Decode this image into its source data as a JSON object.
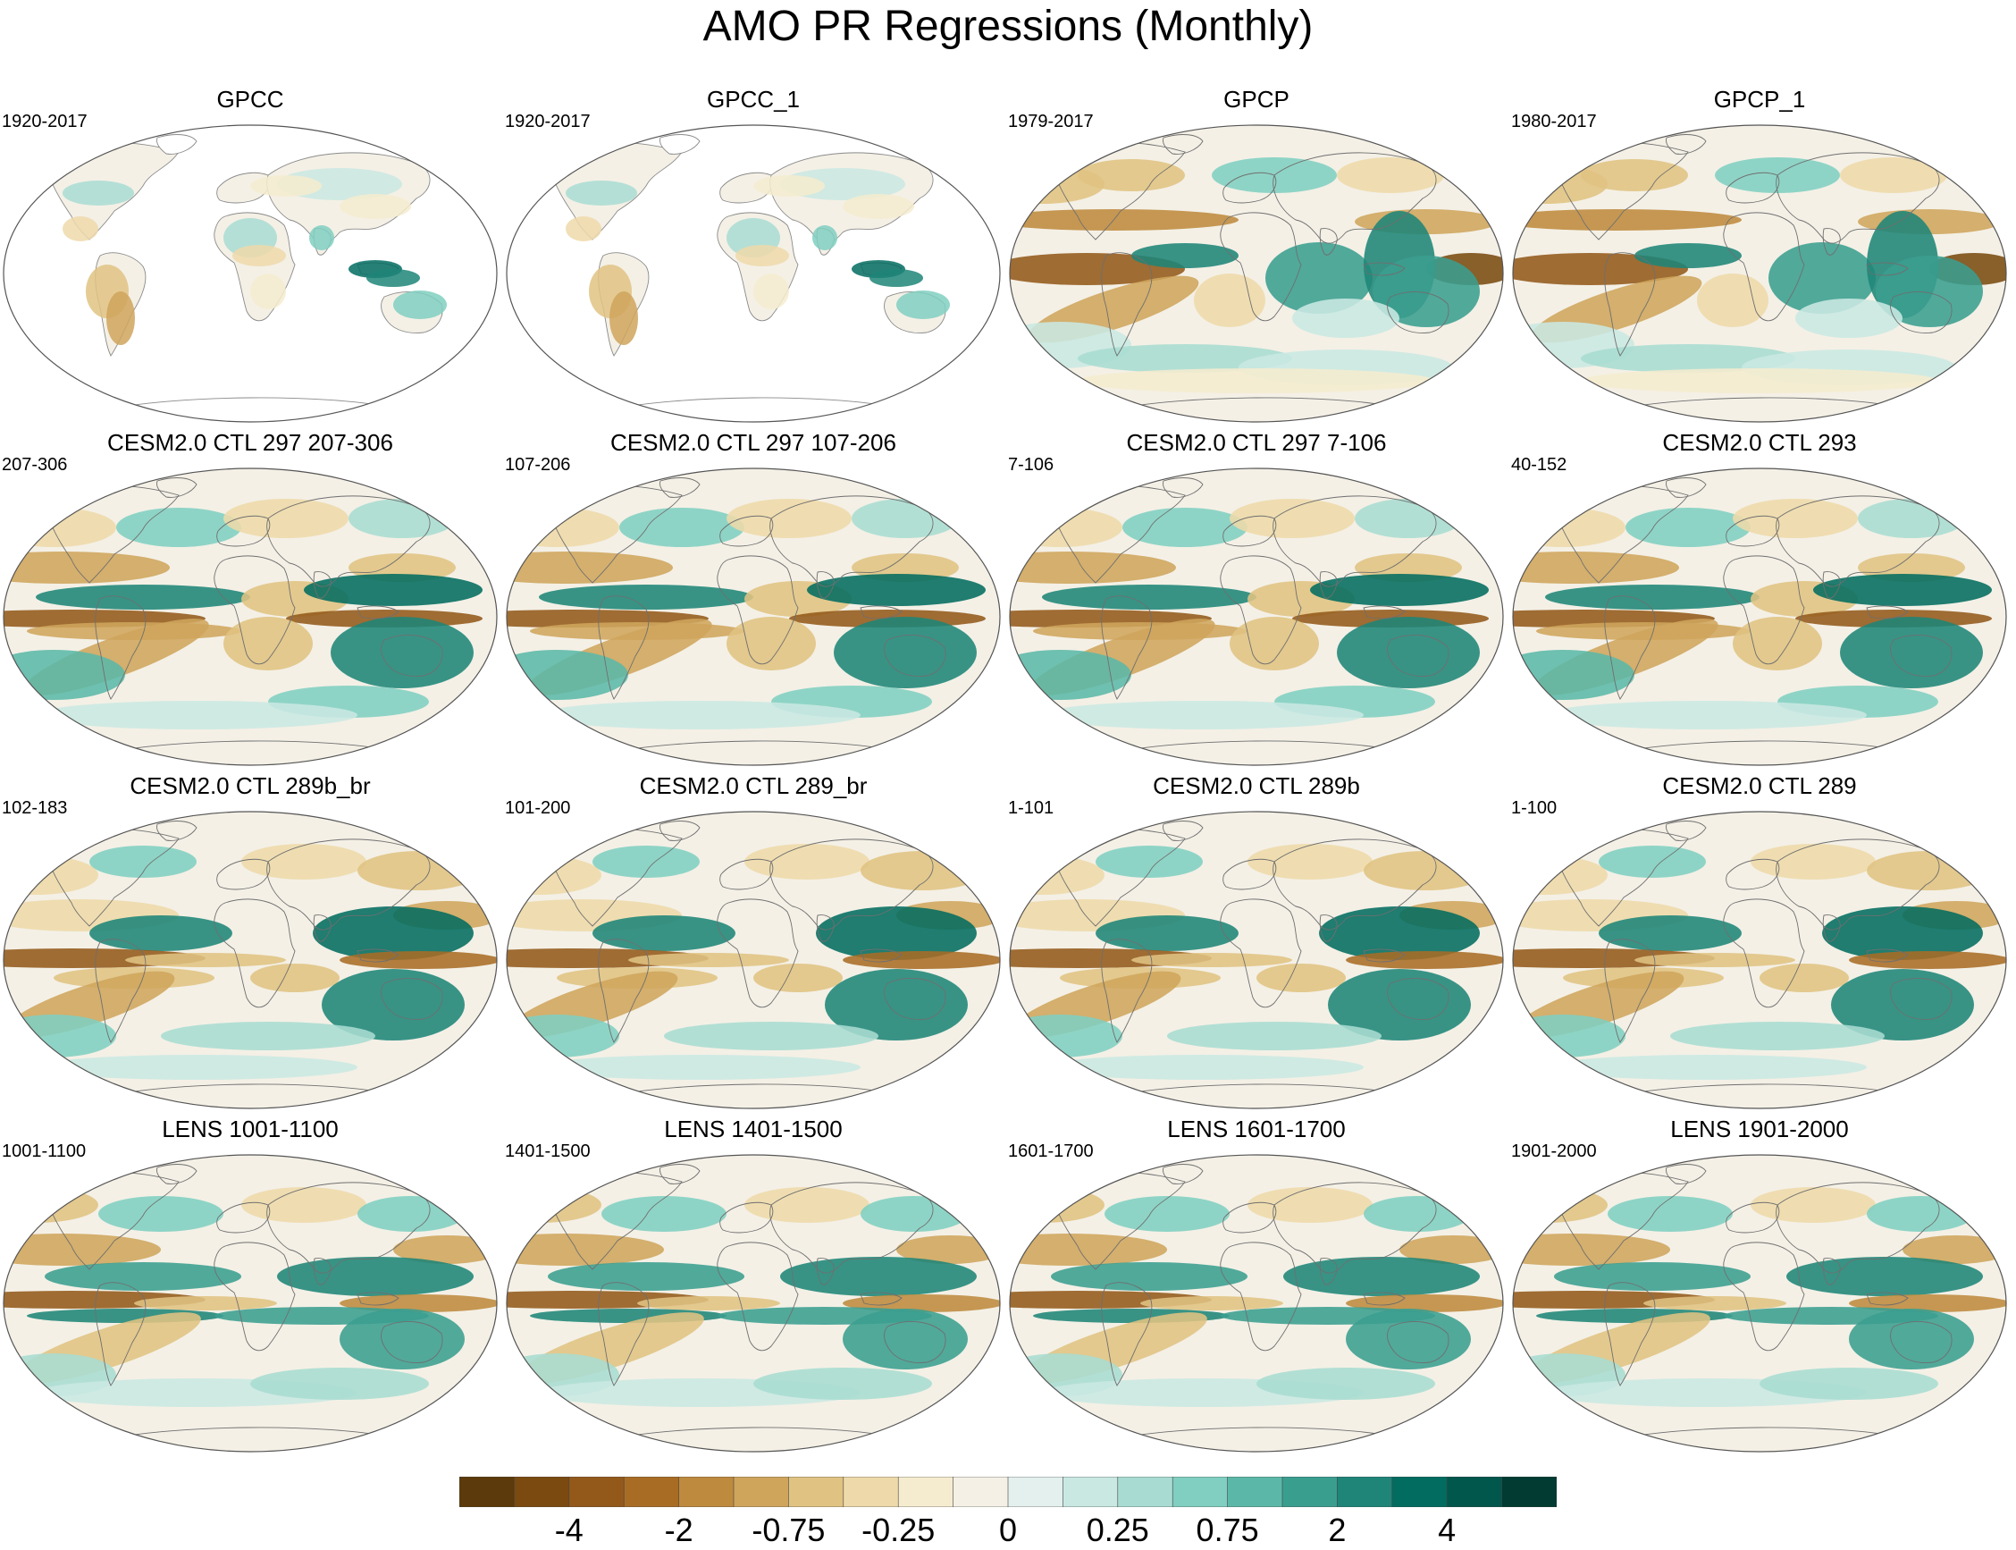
{
  "figure_title": "AMO PR Regressions (Monthly)",
  "panels": [
    {
      "title": "GPCC",
      "period": "1920-2017",
      "coverage": "land_only",
      "style": 0
    },
    {
      "title": "GPCC_1",
      "period": "1920-2017",
      "coverage": "land_only",
      "style": 0
    },
    {
      "title": "GPCP",
      "period": "1979-2017",
      "coverage": "global",
      "style": 1
    },
    {
      "title": "GPCP_1",
      "period": "1980-2017",
      "coverage": "global",
      "style": 1
    },
    {
      "title": "CESM2.0 CTL 297 207-306",
      "period": "207-306",
      "coverage": "global",
      "style": 2
    },
    {
      "title": "CESM2.0 CTL 297 107-206",
      "period": "107-206",
      "coverage": "global",
      "style": 2
    },
    {
      "title": "CESM2.0 CTL 297 7-106",
      "period": "7-106",
      "coverage": "global",
      "style": 2
    },
    {
      "title": "CESM2.0 CTL 293",
      "period": "40-152",
      "coverage": "global",
      "style": 2
    },
    {
      "title": "CESM2.0 CTL 289b_br",
      "period": "102-183",
      "coverage": "global",
      "style": 3
    },
    {
      "title": "CESM2.0 CTL 289_br",
      "period": "101-200",
      "coverage": "global",
      "style": 3
    },
    {
      "title": "CESM2.0 CTL 289b",
      "period": "1-101",
      "coverage": "global",
      "style": 3
    },
    {
      "title": "CESM2.0 CTL 289",
      "period": "1-100",
      "coverage": "global",
      "style": 3
    },
    {
      "title": "LENS 1001-1100",
      "period": "1001-1100",
      "coverage": "global",
      "style": 4
    },
    {
      "title": "LENS 1401-1500",
      "period": "1401-1500",
      "coverage": "global",
      "style": 4
    },
    {
      "title": "LENS 1601-1700",
      "period": "1601-1700",
      "coverage": "global",
      "style": 4
    },
    {
      "title": "LENS 1901-2000",
      "period": "1901-2000",
      "coverage": "global",
      "style": 4
    }
  ],
  "colorbar": {
    "colors": [
      "#5c3a0b",
      "#7a4a10",
      "#93591a",
      "#a96c25",
      "#be8a3e",
      "#cfa55c",
      "#e0c382",
      "#eed9aa",
      "#f5eccf",
      "#f4f0e6",
      "#e4f0ee",
      "#c9e8e2",
      "#a8dcd2",
      "#80cfc1",
      "#5bb8a8",
      "#3a9e8f",
      "#1e8578",
      "#026c60",
      "#02574c",
      "#013b32"
    ],
    "tick_labels": [
      {
        "label": "-4",
        "index": 2
      },
      {
        "label": "-2",
        "index": 4
      },
      {
        "label": "-0.75",
        "index": 6
      },
      {
        "label": "-0.25",
        "index": 8
      },
      {
        "label": "0",
        "index": 10
      },
      {
        "label": "0.25",
        "index": 12
      },
      {
        "label": "0.75",
        "index": 14
      },
      {
        "label": "2",
        "index": 16
      },
      {
        "label": "4",
        "index": 18
      }
    ]
  }
}
